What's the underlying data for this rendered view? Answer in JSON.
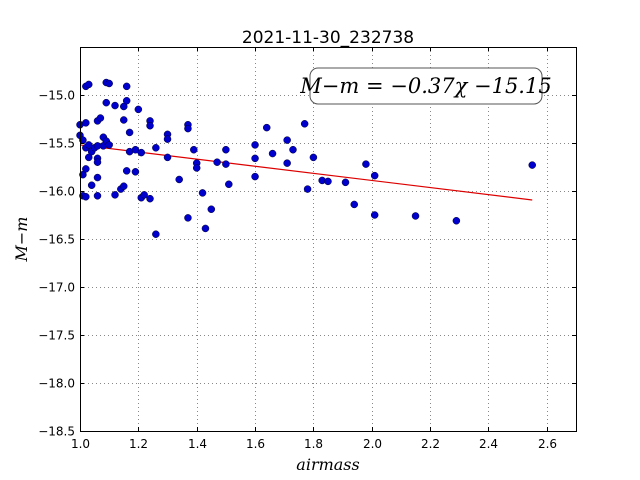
{
  "chart_data": {
    "type": "scatter",
    "title": "2021-11-30_232738",
    "xlabel": "airmass",
    "ylabel": "M−m",
    "xlim": [
      1.0,
      2.7
    ],
    "ylim": [
      -18.5,
      -14.5
    ],
    "y_inverted": true,
    "grid": true,
    "x_ticks": [
      "1.0",
      "1.2",
      "1.4",
      "1.6",
      "1.8",
      "2.0",
      "2.2",
      "2.4",
      "2.6"
    ],
    "y_ticks": [
      "−15.0",
      "−15.5",
      "−16.0",
      "−16.5",
      "−17.0",
      "−17.5",
      "−18.0",
      "−18.5"
    ],
    "annotation": "M−m = −0.37χ −15.15",
    "point_color": "#0000cc",
    "fit_color": "#dd0000",
    "points": [
      {
        "x": 1.0,
        "y": -15.31
      },
      {
        "x": 1.0,
        "y": -15.42
      },
      {
        "x": 1.01,
        "y": -15.47
      },
      {
        "x": 1.02,
        "y": -15.55
      },
      {
        "x": 1.01,
        "y": -16.05
      },
      {
        "x": 1.02,
        "y": -16.06
      },
      {
        "x": 1.01,
        "y": -15.83
      },
      {
        "x": 1.02,
        "y": -15.77
      },
      {
        "x": 1.02,
        "y": -15.29
      },
      {
        "x": 1.02,
        "y": -14.91
      },
      {
        "x": 1.03,
        "y": -14.89
      },
      {
        "x": 1.03,
        "y": -15.52
      },
      {
        "x": 1.03,
        "y": -15.65
      },
      {
        "x": 1.04,
        "y": -15.59
      },
      {
        "x": 1.04,
        "y": -15.94
      },
      {
        "x": 1.05,
        "y": -15.55
      },
      {
        "x": 1.06,
        "y": -15.27
      },
      {
        "x": 1.06,
        "y": -15.53
      },
      {
        "x": 1.06,
        "y": -15.66
      },
      {
        "x": 1.06,
        "y": -15.7
      },
      {
        "x": 1.06,
        "y": -15.86
      },
      {
        "x": 1.06,
        "y": -16.05
      },
      {
        "x": 1.07,
        "y": -15.24
      },
      {
        "x": 1.08,
        "y": -15.44
      },
      {
        "x": 1.08,
        "y": -15.53
      },
      {
        "x": 1.09,
        "y": -14.87
      },
      {
        "x": 1.09,
        "y": -15.08
      },
      {
        "x": 1.1,
        "y": -14.88
      },
      {
        "x": 1.09,
        "y": -15.48
      },
      {
        "x": 1.1,
        "y": -15.52
      },
      {
        "x": 1.12,
        "y": -15.11
      },
      {
        "x": 1.12,
        "y": -16.04
      },
      {
        "x": 1.14,
        "y": -15.98
      },
      {
        "x": 1.15,
        "y": -15.12
      },
      {
        "x": 1.15,
        "y": -15.26
      },
      {
        "x": 1.15,
        "y": -15.95
      },
      {
        "x": 1.16,
        "y": -14.91
      },
      {
        "x": 1.16,
        "y": -15.06
      },
      {
        "x": 1.16,
        "y": -15.79
      },
      {
        "x": 1.17,
        "y": -15.39
      },
      {
        "x": 1.17,
        "y": -15.59
      },
      {
        "x": 1.19,
        "y": -15.57
      },
      {
        "x": 1.19,
        "y": -15.8
      },
      {
        "x": 1.2,
        "y": -15.15
      },
      {
        "x": 1.21,
        "y": -15.6
      },
      {
        "x": 1.21,
        "y": -16.07
      },
      {
        "x": 1.22,
        "y": -16.04
      },
      {
        "x": 1.24,
        "y": -15.27
      },
      {
        "x": 1.24,
        "y": -15.32
      },
      {
        "x": 1.24,
        "y": -16.08
      },
      {
        "x": 1.26,
        "y": -15.55
      },
      {
        "x": 1.26,
        "y": -16.45
      },
      {
        "x": 1.3,
        "y": -15.41
      },
      {
        "x": 1.3,
        "y": -15.46
      },
      {
        "x": 1.3,
        "y": -15.65
      },
      {
        "x": 1.34,
        "y": -15.88
      },
      {
        "x": 1.37,
        "y": -15.31
      },
      {
        "x": 1.37,
        "y": -15.35
      },
      {
        "x": 1.37,
        "y": -16.28
      },
      {
        "x": 1.39,
        "y": -15.57
      },
      {
        "x": 1.4,
        "y": -15.71
      },
      {
        "x": 1.4,
        "y": -15.76
      },
      {
        "x": 1.42,
        "y": -16.02
      },
      {
        "x": 1.43,
        "y": -16.39
      },
      {
        "x": 1.45,
        "y": -16.19
      },
      {
        "x": 1.47,
        "y": -15.7
      },
      {
        "x": 1.5,
        "y": -15.57
      },
      {
        "x": 1.5,
        "y": -15.72
      },
      {
        "x": 1.51,
        "y": -15.93
      },
      {
        "x": 1.6,
        "y": -15.52
      },
      {
        "x": 1.6,
        "y": -15.66
      },
      {
        "x": 1.6,
        "y": -15.85
      },
      {
        "x": 1.64,
        "y": -15.34
      },
      {
        "x": 1.66,
        "y": -15.61
      },
      {
        "x": 1.71,
        "y": -15.47
      },
      {
        "x": 1.71,
        "y": -15.71
      },
      {
        "x": 1.73,
        "y": -15.57
      },
      {
        "x": 1.77,
        "y": -15.3
      },
      {
        "x": 1.78,
        "y": -15.98
      },
      {
        "x": 1.8,
        "y": -15.65
      },
      {
        "x": 1.83,
        "y": -15.89
      },
      {
        "x": 1.85,
        "y": -15.9
      },
      {
        "x": 1.91,
        "y": -15.91
      },
      {
        "x": 1.94,
        "y": -16.14
      },
      {
        "x": 1.98,
        "y": -15.72
      },
      {
        "x": 2.01,
        "y": -15.84
      },
      {
        "x": 2.01,
        "y": -16.25
      },
      {
        "x": 2.15,
        "y": -16.26
      },
      {
        "x": 2.29,
        "y": -16.31
      },
      {
        "x": 2.55,
        "y": -15.73
      }
    ],
    "fit_line": {
      "slope": -0.37,
      "intercept": -15.15,
      "x_range": [
        1.0,
        2.55
      ]
    }
  }
}
